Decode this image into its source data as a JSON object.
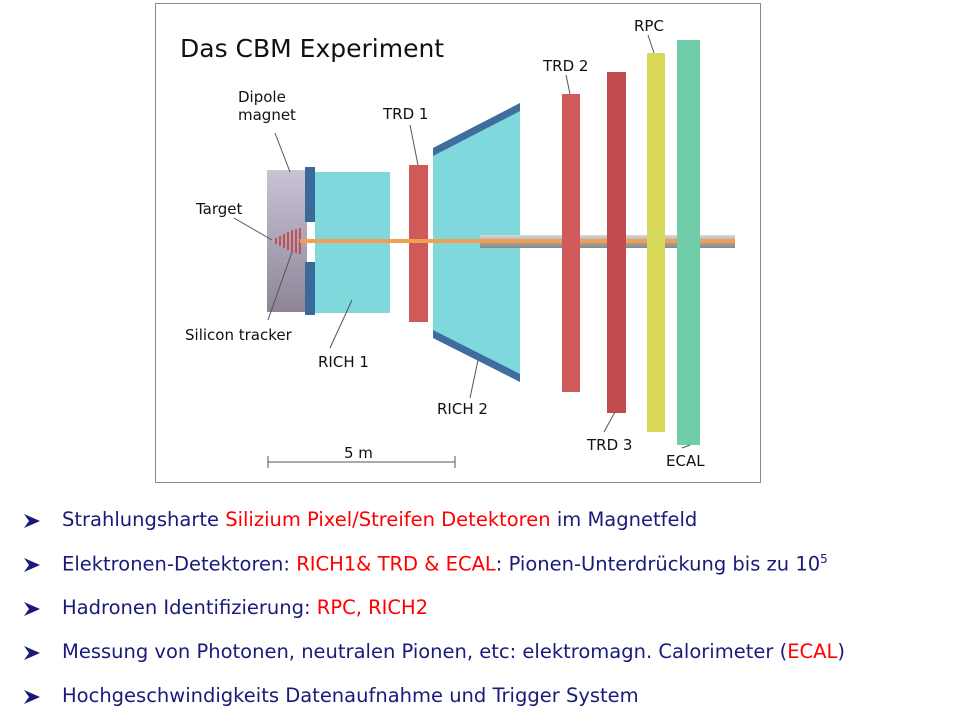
{
  "diagram": {
    "title": "Das CBM Experiment",
    "labels": {
      "dipole": "Dipole\nmagnet",
      "target": "Target",
      "silicon": "Silicon tracker",
      "rich1": "RICH 1",
      "trd1": "TRD 1",
      "rich2": "RICH 2",
      "trd2": "TRD 2",
      "trd3": "TRD 3",
      "rpc": "RPC",
      "ecal": "ECAL",
      "scale": "5 m"
    }
  },
  "bullets": [
    {
      "segments": [
        {
          "text": "Strahlungsharte "
        },
        {
          "text": "Silizium Pixel/Streifen Detektoren",
          "color": "red"
        },
        {
          "text": " im Magnetfeld"
        }
      ]
    },
    {
      "segments": [
        {
          "text": "Elektronen-Detektoren: "
        },
        {
          "text": "RICH1& TRD & ECAL",
          "color": "red"
        },
        {
          "text": ":  Pionen-Unterdrückung bis zu 10"
        },
        {
          "text": "5",
          "superscript": true
        }
      ]
    },
    {
      "segments": [
        {
          "text": "Hadronen Identifizierung:  "
        },
        {
          "text": "RPC, RICH2",
          "color": "red"
        }
      ]
    },
    {
      "segments": [
        {
          "text": "Messung von Photonen, neutralen Pionen, etc:   elektromagn. Calorimeter ("
        },
        {
          "text": "ECAL",
          "color": "red"
        },
        {
          "text": ")"
        }
      ]
    },
    {
      "segments": [
        {
          "text": "Hochgeschwindigkeits Datenaufnahme und Trigger System"
        }
      ]
    }
  ]
}
